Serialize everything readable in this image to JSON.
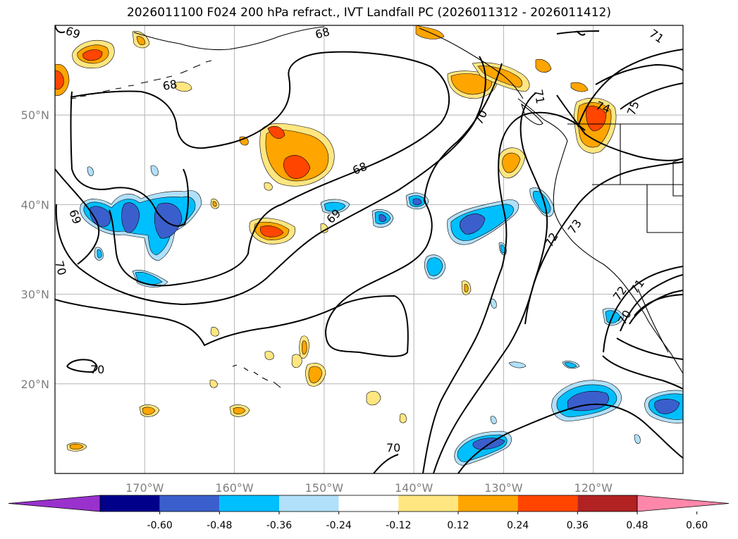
{
  "title": "2026011100 F024 200 hPa refract., IVT Landfall PC (2026011312 - 2026011412)",
  "map": {
    "lon_range": [
      -180,
      -110
    ],
    "lat_range": [
      10,
      60
    ],
    "lat_ticks": [
      {
        "value": 50,
        "label": "50°N"
      },
      {
        "value": 40,
        "label": "40°N"
      },
      {
        "value": 30,
        "label": "30°N"
      },
      {
        "value": 20,
        "label": "20°N"
      }
    ],
    "lon_ticks": [
      {
        "value": -170,
        "label": "170°W"
      },
      {
        "value": -160,
        "label": "160°W"
      },
      {
        "value": -150,
        "label": "150°W"
      },
      {
        "value": -140,
        "label": "140°W"
      },
      {
        "value": -130,
        "label": "130°W"
      },
      {
        "value": -120,
        "label": "120°W"
      }
    ],
    "gridlines": true,
    "contour_labels": [
      "69",
      "68",
      "68",
      "69",
      "70",
      "69",
      "70",
      "68",
      "70",
      "71",
      "72",
      "73",
      "74",
      "75",
      "71",
      "72",
      "71",
      "70",
      "70"
    ]
  },
  "colorbar": {
    "levels": [
      "-0.60",
      "-0.48",
      "-0.36",
      "-0.24",
      "-0.12",
      "0.12",
      "0.24",
      "0.36",
      "0.48",
      "0.60"
    ],
    "colors": [
      "#9932cc",
      "#00008b",
      "#3a5fcd",
      "#00bfff",
      "#b0e0fa",
      "#ffffff",
      "#ffe680",
      "#ffa500",
      "#ff4500",
      "#b22222",
      "#ff88aa"
    ],
    "extend": "both"
  }
}
